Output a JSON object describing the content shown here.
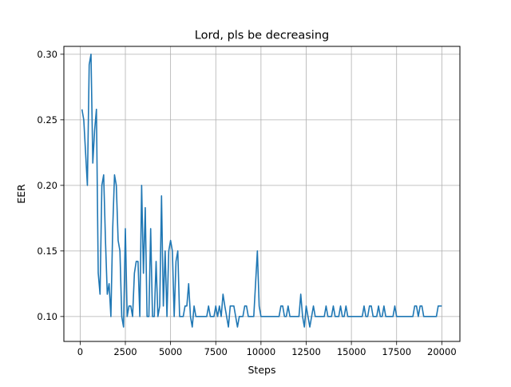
{
  "chart_data": {
    "type": "line",
    "title": "Lord, pls be decreasing",
    "xlabel": "Steps",
    "ylabel": "EER",
    "xlim": [
      -900,
      21000
    ],
    "ylim": [
      0.081,
      0.306
    ],
    "grid": true,
    "legend": "none",
    "xticks": [
      0,
      2500,
      5000,
      7500,
      10000,
      12500,
      15000,
      17500,
      20000
    ],
    "xtick_labels": [
      "0",
      "2500",
      "5000",
      "7500",
      "10000",
      "12500",
      "15000",
      "17500",
      "20000"
    ],
    "yticks": [
      0.1,
      0.15,
      0.2,
      0.25,
      0.3
    ],
    "ytick_labels": [
      "0.10",
      "0.15",
      "0.20",
      "0.25",
      "0.30"
    ],
    "series": [
      {
        "color": "#1f77b4",
        "points": [
          [
            100,
            0.258
          ],
          [
            200,
            0.25
          ],
          [
            300,
            0.225
          ],
          [
            400,
            0.2
          ],
          [
            500,
            0.292
          ],
          [
            600,
            0.3
          ],
          [
            700,
            0.217
          ],
          [
            800,
            0.242
          ],
          [
            900,
            0.258
          ],
          [
            1000,
            0.133
          ],
          [
            1100,
            0.117
          ],
          [
            1200,
            0.2
          ],
          [
            1300,
            0.208
          ],
          [
            1400,
            0.158
          ],
          [
            1500,
            0.117
          ],
          [
            1600,
            0.125
          ],
          [
            1700,
            0.1
          ],
          [
            1800,
            0.167
          ],
          [
            1900,
            0.208
          ],
          [
            2000,
            0.2
          ],
          [
            2100,
            0.158
          ],
          [
            2200,
            0.15
          ],
          [
            2300,
            0.1
          ],
          [
            2400,
            0.092
          ],
          [
            2500,
            0.167
          ],
          [
            2600,
            0.1
          ],
          [
            2700,
            0.108
          ],
          [
            2800,
            0.108
          ],
          [
            2900,
            0.1
          ],
          [
            3000,
            0.133
          ],
          [
            3100,
            0.142
          ],
          [
            3200,
            0.142
          ],
          [
            3300,
            0.1
          ],
          [
            3400,
            0.2
          ],
          [
            3500,
            0.133
          ],
          [
            3600,
            0.183
          ],
          [
            3700,
            0.1
          ],
          [
            3800,
            0.1
          ],
          [
            3900,
            0.167
          ],
          [
            4000,
            0.1
          ],
          [
            4100,
            0.1
          ],
          [
            4200,
            0.142
          ],
          [
            4300,
            0.1
          ],
          [
            4400,
            0.108
          ],
          [
            4500,
            0.192
          ],
          [
            4600,
            0.108
          ],
          [
            4700,
            0.15
          ],
          [
            4800,
            0.1
          ],
          [
            4900,
            0.15
          ],
          [
            5000,
            0.158
          ],
          [
            5100,
            0.15
          ],
          [
            5200,
            0.1
          ],
          [
            5300,
            0.142
          ],
          [
            5400,
            0.15
          ],
          [
            5500,
            0.1
          ],
          [
            5600,
            0.1
          ],
          [
            5700,
            0.1
          ],
          [
            5800,
            0.108
          ],
          [
            5900,
            0.108
          ],
          [
            6000,
            0.125
          ],
          [
            6100,
            0.1
          ],
          [
            6200,
            0.092
          ],
          [
            6300,
            0.108
          ],
          [
            6400,
            0.1
          ],
          [
            6500,
            0.1
          ],
          [
            7000,
            0.1
          ],
          [
            7100,
            0.108
          ],
          [
            7200,
            0.1
          ],
          [
            7300,
            0.1
          ],
          [
            7400,
            0.1
          ],
          [
            7500,
            0.108
          ],
          [
            7600,
            0.1
          ],
          [
            7700,
            0.108
          ],
          [
            7800,
            0.1
          ],
          [
            7900,
            0.117
          ],
          [
            8000,
            0.108
          ],
          [
            8100,
            0.1
          ],
          [
            8200,
            0.092
          ],
          [
            8300,
            0.108
          ],
          [
            8400,
            0.108
          ],
          [
            8500,
            0.108
          ],
          [
            8600,
            0.1
          ],
          [
            8700,
            0.092
          ],
          [
            8800,
            0.1
          ],
          [
            8900,
            0.1
          ],
          [
            9000,
            0.1
          ],
          [
            9100,
            0.108
          ],
          [
            9200,
            0.108
          ],
          [
            9300,
            0.1
          ],
          [
            9400,
            0.1
          ],
          [
            9500,
            0.1
          ],
          [
            9600,
            0.1
          ],
          [
            9700,
            0.125
          ],
          [
            9800,
            0.15
          ],
          [
            9900,
            0.108
          ],
          [
            10000,
            0.1
          ],
          [
            11000,
            0.1
          ],
          [
            11100,
            0.108
          ],
          [
            11200,
            0.108
          ],
          [
            11300,
            0.1
          ],
          [
            11400,
            0.1
          ],
          [
            11500,
            0.108
          ],
          [
            11600,
            0.1
          ],
          [
            12100,
            0.1
          ],
          [
            12200,
            0.117
          ],
          [
            12300,
            0.1
          ],
          [
            12400,
            0.092
          ],
          [
            12500,
            0.108
          ],
          [
            12600,
            0.1
          ],
          [
            12700,
            0.092
          ],
          [
            12800,
            0.1
          ],
          [
            12900,
            0.108
          ],
          [
            13000,
            0.1
          ],
          [
            13500,
            0.1
          ],
          [
            13600,
            0.108
          ],
          [
            13700,
            0.1
          ],
          [
            13900,
            0.1
          ],
          [
            14000,
            0.108
          ],
          [
            14100,
            0.1
          ],
          [
            14300,
            0.1
          ],
          [
            14400,
            0.108
          ],
          [
            14500,
            0.1
          ],
          [
            14600,
            0.1
          ],
          [
            14700,
            0.108
          ],
          [
            14800,
            0.1
          ],
          [
            15600,
            0.1
          ],
          [
            15700,
            0.108
          ],
          [
            15800,
            0.1
          ],
          [
            15900,
            0.1
          ],
          [
            16000,
            0.108
          ],
          [
            16100,
            0.108
          ],
          [
            16200,
            0.1
          ],
          [
            16400,
            0.1
          ],
          [
            16500,
            0.108
          ],
          [
            16600,
            0.1
          ],
          [
            16700,
            0.1
          ],
          [
            16800,
            0.108
          ],
          [
            16900,
            0.1
          ],
          [
            17300,
            0.1
          ],
          [
            17400,
            0.108
          ],
          [
            17500,
            0.1
          ],
          [
            18400,
            0.1
          ],
          [
            18500,
            0.108
          ],
          [
            18600,
            0.108
          ],
          [
            18700,
            0.1
          ],
          [
            18800,
            0.108
          ],
          [
            18900,
            0.108
          ],
          [
            19000,
            0.1
          ],
          [
            19700,
            0.1
          ],
          [
            19800,
            0.108
          ],
          [
            20000,
            0.108
          ]
        ]
      }
    ]
  }
}
